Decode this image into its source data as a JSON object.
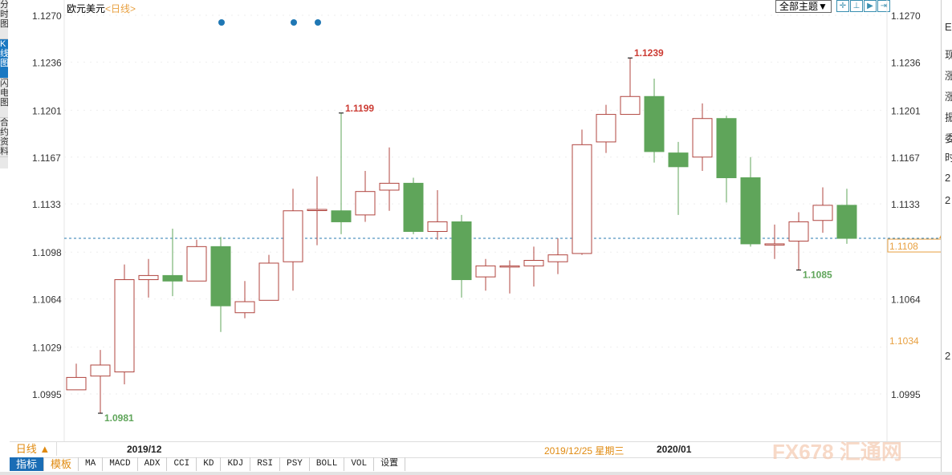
{
  "side_tabs": [
    {
      "label": "分时图",
      "active": false
    },
    {
      "label": "K线图",
      "active": true
    },
    {
      "label": "闪电图",
      "active": false
    },
    {
      "label": "合约资料",
      "active": false
    }
  ],
  "header": {
    "symbol": "欧元美元",
    "period": "<日线>",
    "theme_button": "全部主题▼",
    "icons": [
      "crosshair-icon",
      "zoom-range-icon",
      "step-forward-icon",
      "jump-end-icon"
    ]
  },
  "right_panel": {
    "items": [
      "E",
      "现",
      "涨",
      "涨",
      "振",
      "委",
      "时",
      "2",
      "2",
      "2"
    ]
  },
  "x_bar": {
    "period_button": "日线 ▲",
    "labels": [
      "2019/12",
      "2019/12/25 星期三",
      "2020/01"
    ]
  },
  "toolbar": {
    "items": [
      "指标",
      "模板",
      "MA",
      "MACD",
      "ADX",
      "CCI",
      "KD",
      "KDJ",
      "RSI",
      "PSY",
      "BOLL",
      "VOL",
      "设置"
    ]
  },
  "watermark": "FX678 汇通网",
  "colors": {
    "up": "#b0453f",
    "down": "#5fa55a",
    "current_line": "#2a7bb0",
    "highlight": "#e8a040",
    "event_dot": "#1f77b4"
  },
  "chart_data": {
    "type": "candlestick",
    "ylim": [
      1.096,
      1.1285
    ],
    "yticks_left": [
      "1.1270",
      "1.1236",
      "1.1201",
      "1.1167",
      "1.1133",
      "1.1098",
      "1.1064",
      "1.1029",
      "1.0995"
    ],
    "yticks_right": [
      "1.1270",
      "1.1236",
      "1.1201",
      "1.1167",
      "1.1133",
      "1.1064",
      "1.0995"
    ],
    "current_price": "1.1108",
    "marker_price": "1.1034",
    "annotations": [
      {
        "candle": 1,
        "price": "1.0981",
        "kind": "low"
      },
      {
        "candle": 11,
        "price": "1.1199",
        "kind": "high"
      },
      {
        "candle": 23,
        "price": "1.1239",
        "kind": "high"
      },
      {
        "candle": 30,
        "price": "1.1085",
        "kind": "low"
      }
    ],
    "event_dots": [
      6,
      9,
      10
    ],
    "candles": [
      [
        1.0998,
        1.1017,
        1.0998,
        1.1007
      ],
      [
        1.1008,
        1.1027,
        1.0981,
        1.1016
      ],
      [
        1.1011,
        1.1089,
        1.1002,
        1.1078
      ],
      [
        1.1078,
        1.1093,
        1.1065,
        1.1081
      ],
      [
        1.1081,
        1.1115,
        1.1066,
        1.1077
      ],
      [
        1.1077,
        1.1107,
        1.1077,
        1.1102
      ],
      [
        1.1102,
        1.1109,
        1.104,
        1.1059
      ],
      [
        1.1054,
        1.1077,
        1.105,
        1.1062
      ],
      [
        1.1063,
        1.1096,
        1.1063,
        1.109
      ],
      [
        1.1091,
        1.1144,
        1.107,
        1.1128
      ],
      [
        1.1129,
        1.1153,
        1.1103,
        1.1129
      ],
      [
        1.1128,
        1.1199,
        1.1111,
        1.112
      ],
      [
        1.1125,
        1.1157,
        1.112,
        1.1142
      ],
      [
        1.1143,
        1.1174,
        1.1128,
        1.1148
      ],
      [
        1.1148,
        1.1152,
        1.1111,
        1.1113
      ],
      [
        1.1113,
        1.1143,
        1.1107,
        1.112
      ],
      [
        1.112,
        1.1125,
        1.1065,
        1.1078
      ],
      [
        1.108,
        1.1093,
        1.107,
        1.1088
      ],
      [
        1.1088,
        1.1092,
        1.1068,
        1.1088
      ],
      [
        1.1088,
        1.1102,
        1.1073,
        1.1092
      ],
      [
        1.1091,
        1.1108,
        1.1082,
        1.1096
      ],
      [
        1.1097,
        1.1187,
        1.1096,
        1.1176
      ],
      [
        1.1178,
        1.1205,
        1.117,
        1.1198
      ],
      [
        1.1198,
        1.1239,
        1.1198,
        1.1211
      ],
      [
        1.1211,
        1.1224,
        1.1163,
        1.1171
      ],
      [
        1.117,
        1.1178,
        1.1125,
        1.116
      ],
      [
        1.1167,
        1.1206,
        1.1157,
        1.1195
      ],
      [
        1.1195,
        1.1197,
        1.1134,
        1.1152
      ],
      [
        1.1152,
        1.1167,
        1.1102,
        1.1104
      ],
      [
        1.1104,
        1.1118,
        1.1093,
        1.1104
      ],
      [
        1.1106,
        1.1127,
        1.1085,
        1.112
      ],
      [
        1.1121,
        1.1145,
        1.1112,
        1.1132
      ],
      [
        1.1132,
        1.1144,
        1.1104,
        1.1108
      ]
    ]
  }
}
